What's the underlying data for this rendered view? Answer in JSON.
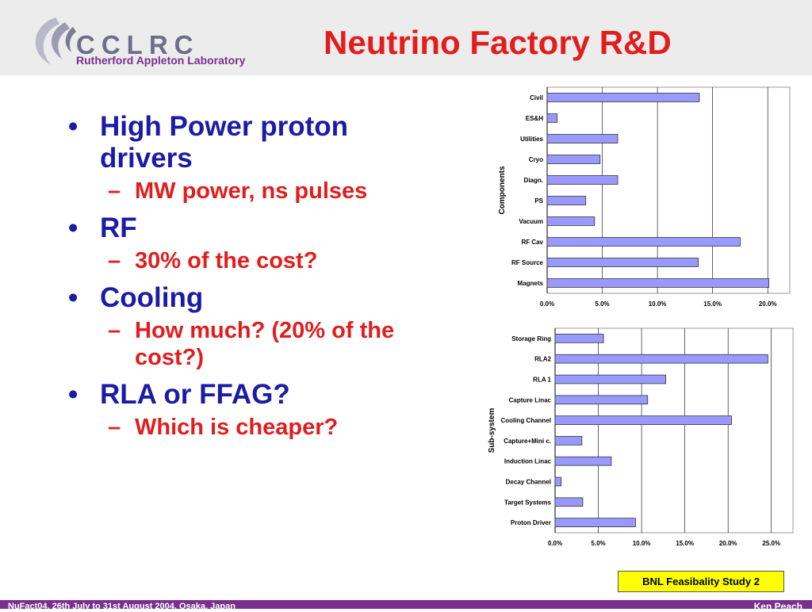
{
  "header": {
    "logo_text": "CCLRC",
    "logo_sub": "Rutherford Appleton Laboratory",
    "title": "Neutrino Factory R&D"
  },
  "bullets": [
    {
      "text": "High Power proton drivers",
      "sub": [
        "MW power, ns pulses"
      ]
    },
    {
      "text": "RF",
      "sub": [
        "30% of the cost?"
      ]
    },
    {
      "text": "Cooling",
      "sub": [
        "How much? (20% of the cost?)"
      ]
    },
    {
      "text": "RLA or FFAG?",
      "sub": [
        "Which is cheaper?"
      ]
    }
  ],
  "chart_data": [
    {
      "type": "bar",
      "orientation": "horizontal",
      "ylabel": "Components",
      "categories": [
        "Civil",
        "ES&H",
        "Utilities",
        "Cryo",
        "Diagn.",
        "PS",
        "Vacuum",
        "RF Cav",
        "RF Source",
        "Magnets"
      ],
      "values": [
        13.8,
        0.9,
        6.4,
        4.8,
        6.4,
        3.5,
        4.3,
        17.5,
        13.7,
        20.1
      ],
      "xticks": [
        "0.0%",
        "5.0%",
        "10.0%",
        "15.0%",
        "20.0%"
      ],
      "xlim": [
        0,
        22
      ],
      "grid": true,
      "bar_color": "#9999ff"
    },
    {
      "type": "bar",
      "orientation": "horizontal",
      "ylabel": "Sub-system",
      "categories": [
        "Storage Ring",
        "RLA2",
        "RLA 1",
        "Capture Linac",
        "Cooling Channel",
        "Capture+Mini c.",
        "Induction Linac",
        "Decay Channel",
        "Target Systems",
        "Proton Driver"
      ],
      "values": [
        5.6,
        24.6,
        12.8,
        10.7,
        20.4,
        3.1,
        6.5,
        0.7,
        3.2,
        9.3
      ],
      "xticks": [
        "0.0%",
        "5.0%",
        "10.0%",
        "15.0%",
        "20.0%",
        "25.0%"
      ],
      "xlim": [
        0,
        27.5
      ],
      "grid": true,
      "bar_color": "#9999ff"
    }
  ],
  "badge": "BNL Feasibality Study 2",
  "footer": {
    "left": "NuFact04, 26th July to 31st August 2004, Osaka, Japan",
    "right": "Ken Peach"
  }
}
